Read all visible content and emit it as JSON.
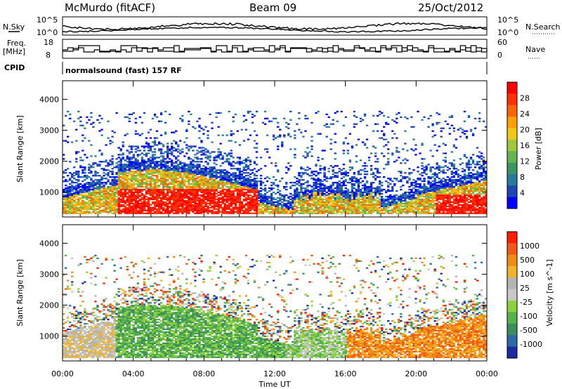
{
  "header": {
    "station": "McMurdo (fitACF)",
    "beam": "Beam 09",
    "date": "25/Oct/2012"
  },
  "noise_panel": {
    "left_label": "N.Sky",
    "right_label": "N.Search",
    "left_ticks": [
      "10^5",
      "10^0"
    ],
    "right_ticks": [
      "10^5",
      "10^0"
    ]
  },
  "freq_panel": {
    "left_label_1": "Freq.",
    "left_label_2": "[MHz]",
    "right_label": "Nave",
    "left_ticks": [
      "18",
      "8"
    ],
    "right_ticks": [
      "60",
      "0"
    ]
  },
  "cpid": {
    "label": "CPID",
    "text": "normalsound (fast) 157 RF"
  },
  "time_axis": {
    "label": "Time UT",
    "ticks": [
      "00:00",
      "04:00",
      "08:00",
      "12:00",
      "16:00",
      "20:00",
      "00:00"
    ]
  },
  "colors": {
    "power_scale": [
      "#0000ff",
      "#1e46b4",
      "#2878a0",
      "#3c9664",
      "#64b450",
      "#a0c83c",
      "#f0c814",
      "#ffa000",
      "#ff6400",
      "#ff3200",
      "#ff0000"
    ],
    "velocity_scale": [
      "#1a2aa0",
      "#2d6aa8",
      "#3c8f5a",
      "#56b24a",
      "#8cd23c",
      "#c8c8c8",
      "#b4b4b4",
      "#f0b428",
      "#f08c14",
      "#f05a14",
      "#ff1e00"
    ]
  },
  "chart_data": [
    {
      "type": "heatmap",
      "name": "power",
      "ylabel": "Slant Range [km]",
      "yticks": [
        "1000",
        "2000",
        "3000",
        "4000"
      ],
      "ylim": [
        200,
        4600
      ],
      "xlim": [
        0,
        24
      ],
      "colorbar_label": "Power [dB]",
      "colorbar_ticks": [
        "28",
        "24",
        "20",
        "16",
        "12",
        "8",
        "4"
      ],
      "colorbar_range": [
        0,
        32
      ]
    },
    {
      "type": "heatmap",
      "name": "velocity",
      "ylabel": "Slant Range [km]",
      "yticks": [
        "1000",
        "2000",
        "3000",
        "4000"
      ],
      "ylim": [
        200,
        4600
      ],
      "xlim": [
        0,
        24
      ],
      "colorbar_label": "Velocity [m s^-1]",
      "colorbar_ticks": [
        "1000",
        "500",
        "100",
        "25",
        "-25",
        "-100",
        "-500",
        "-1000"
      ]
    }
  ]
}
